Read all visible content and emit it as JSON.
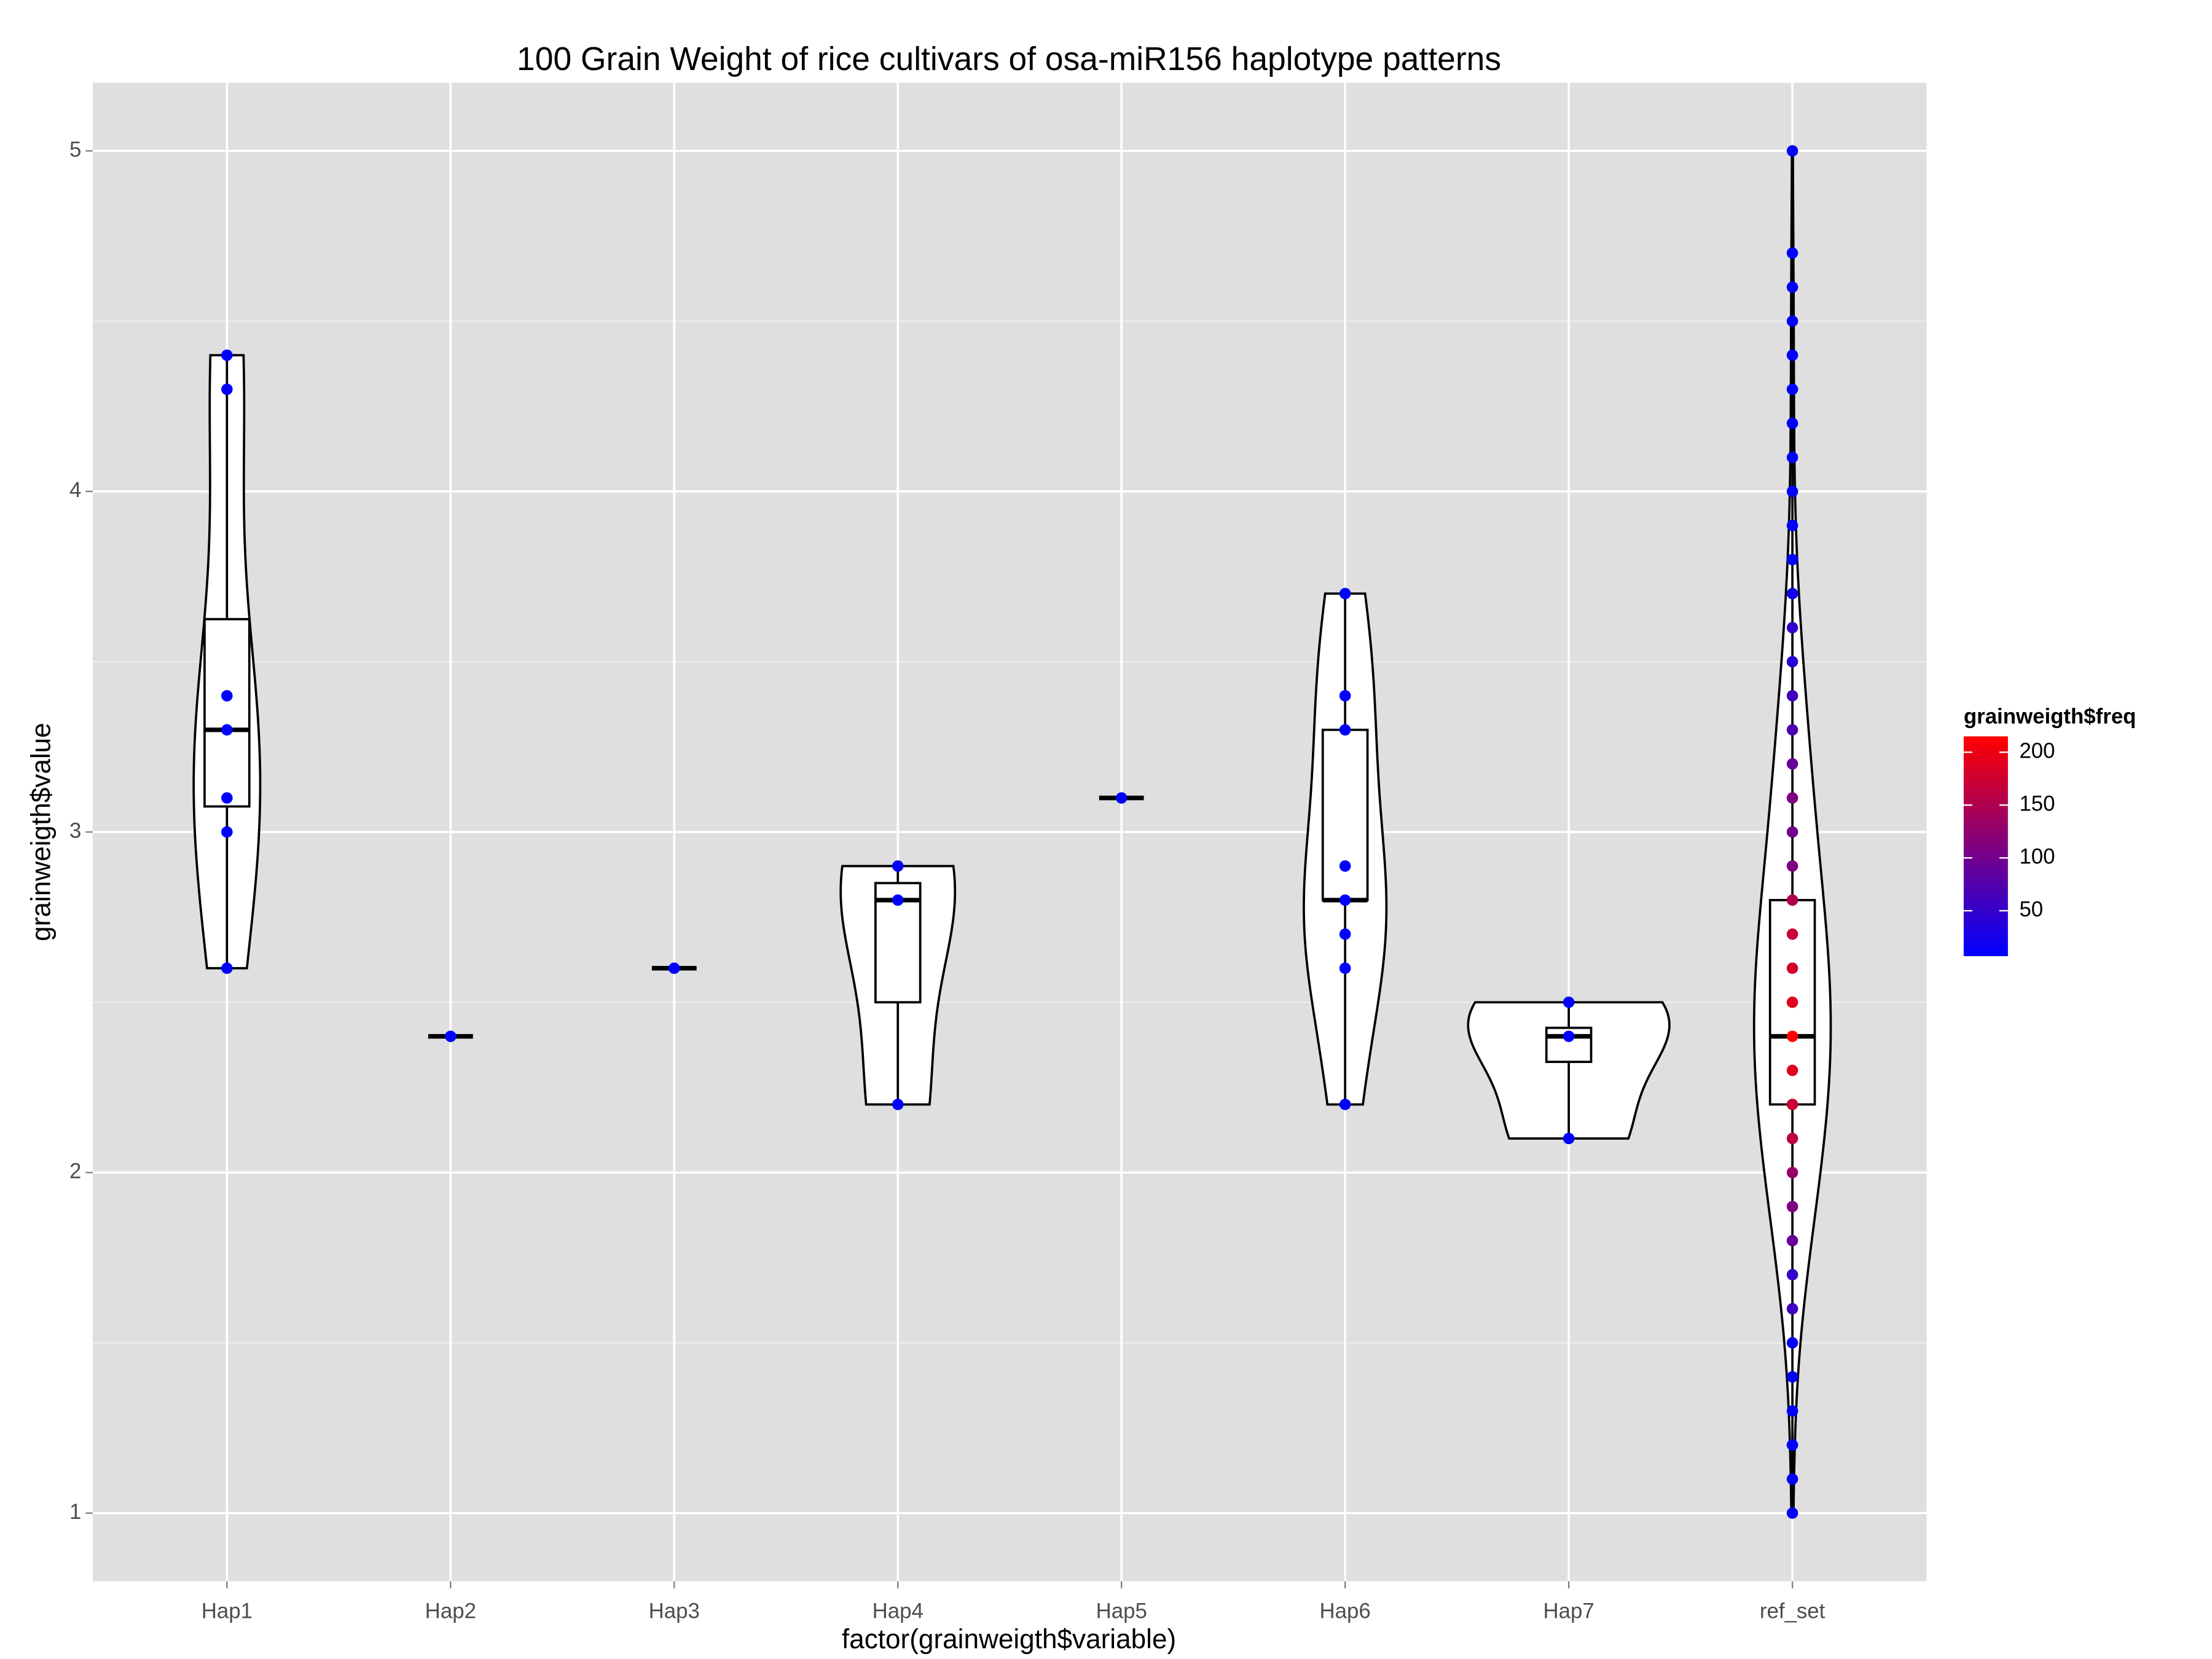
{
  "chart_data": {
    "type": "violin",
    "title": "100 Grain Weight of rice cultivars of osa-miR156 haplotype patterns",
    "x_label": "factor(grainweigth$variable)",
    "y_label": "grainweigth$value",
    "ylim": [
      0.8,
      5.2
    ],
    "yticks": [
      1,
      2,
      3,
      4,
      5
    ],
    "grid": true,
    "legend": {
      "title": "grainweigth$freq",
      "position": "right",
      "low_color": "#0000ff",
      "high_color": "#ff0000",
      "limits": [
        7,
        215
      ],
      "ticks": [
        50,
        100,
        150,
        200
      ]
    },
    "groups": [
      {
        "name": "Hap1",
        "values": [
          2.6,
          3.0,
          3.1,
          3.3,
          3.4,
          4.3,
          4.4
        ],
        "freq": [
          7,
          7,
          7,
          7,
          7,
          7,
          7
        ],
        "box": {
          "low": 2.6,
          "q1": 3.075,
          "median": 3.3,
          "q3": 3.625,
          "high": 4.4
        }
      },
      {
        "name": "Hap2",
        "values": [
          2.4
        ],
        "freq": [
          7
        ],
        "box": {
          "low": 2.4,
          "q1": 2.4,
          "median": 2.4,
          "q3": 2.4,
          "high": 2.4
        }
      },
      {
        "name": "Hap3",
        "values": [
          2.6
        ],
        "freq": [
          7
        ],
        "box": {
          "low": 2.6,
          "q1": 2.6,
          "median": 2.6,
          "q3": 2.6,
          "high": 2.6
        }
      },
      {
        "name": "Hap4",
        "values": [
          2.2,
          2.8,
          2.9
        ],
        "freq": [
          7,
          7,
          7
        ],
        "box": {
          "low": 2.2,
          "q1": 2.5,
          "median": 2.8,
          "q3": 2.85,
          "high": 2.9
        }
      },
      {
        "name": "Hap5",
        "values": [
          3.1
        ],
        "freq": [
          7
        ],
        "box": {
          "low": 3.1,
          "q1": 3.1,
          "median": 3.1,
          "q3": 3.1,
          "high": 3.1
        }
      },
      {
        "name": "Hap6",
        "values": [
          2.2,
          2.6,
          2.7,
          2.8,
          2.9,
          3.3,
          3.4,
          3.7
        ],
        "freq": [
          7,
          7,
          7,
          7,
          7,
          7,
          7,
          7
        ],
        "box": {
          "low": 2.2,
          "q1": 2.8,
          "median": 2.8,
          "q3": 3.3,
          "high": 3.7
        }
      },
      {
        "name": "Hap7",
        "values": [
          2.1,
          2.4,
          2.5
        ],
        "freq": [
          7,
          7,
          7
        ],
        "box": {
          "low": 2.1,
          "q1": 2.325,
          "median": 2.4,
          "q3": 2.425,
          "high": 2.5
        }
      },
      {
        "name": "ref_set",
        "values": [
          1.0,
          1.1,
          1.2,
          1.3,
          1.4,
          1.5,
          1.6,
          1.7,
          1.8,
          1.9,
          2.0,
          2.1,
          2.2,
          2.3,
          2.4,
          2.5,
          2.6,
          2.7,
          2.8,
          2.9,
          3.0,
          3.1,
          3.2,
          3.3,
          3.4,
          3.5,
          3.6,
          3.7,
          3.8,
          3.9,
          4.0,
          4.1,
          4.2,
          4.3,
          4.4,
          4.5,
          4.6,
          4.7,
          5.0
        ],
        "freq": [
          7,
          7,
          7,
          7,
          7,
          10,
          60,
          50,
          90,
          110,
          130,
          160,
          170,
          190,
          215,
          190,
          180,
          170,
          150,
          110,
          100,
          110,
          90,
          70,
          60,
          40,
          50,
          20,
          7,
          7,
          7,
          7,
          7,
          7,
          7,
          7,
          7,
          7,
          7
        ],
        "box": {
          "low": 1.0,
          "q1": 2.2,
          "median": 2.4,
          "q3": 2.8,
          "high": 5.0
        }
      }
    ]
  }
}
